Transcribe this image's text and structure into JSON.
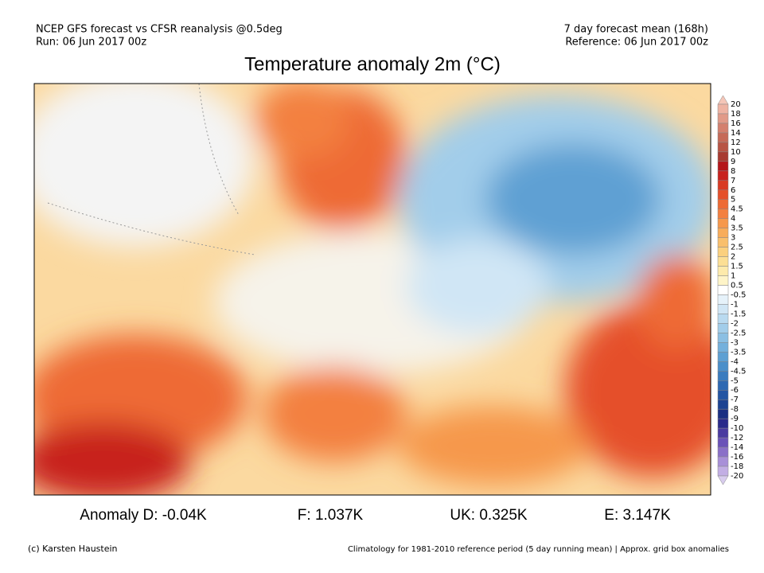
{
  "header": {
    "left_lines": [
      "NCEP GFS forecast vs CFSR reanalysis @0.5deg",
      "Run: 06 Jun 2017 00z"
    ],
    "right_lines": [
      "7 day forecast mean (168h)",
      "Reference: 06 Jun 2017 00z"
    ],
    "title": "Temperature anomaly 2m (°C)"
  },
  "colorbar": {
    "labels": [
      "20",
      "18",
      "16",
      "14",
      "12",
      "10",
      "9",
      "8",
      "7",
      "6",
      "5",
      "4.5",
      "4",
      "3.5",
      "3",
      "2.5",
      "2",
      "1.5",
      "1",
      "0.5",
      "-0.5",
      "-1",
      "-1.5",
      "-2",
      "-2.5",
      "-3",
      "-3.5",
      "-4",
      "-4.5",
      "-5",
      "-6",
      "-7",
      "-8",
      "-9",
      "-10",
      "-12",
      "-14",
      "-16",
      "-18",
      "-20"
    ],
    "colors": [
      "#f5c6b8",
      "#eeb3a3",
      "#e19a88",
      "#d4806e",
      "#c66a58",
      "#b85444",
      "#a83a30",
      "#b4161a",
      "#c8221e",
      "#d93a24",
      "#e5502a",
      "#ee6a34",
      "#f38040",
      "#f6984c",
      "#f8ac5a",
      "#f9bf6c",
      "#fbd07e",
      "#fcdf94",
      "#fdeaab",
      "#fef4c8",
      "#ffffff",
      "#e6f2fa",
      "#d0e6f5",
      "#b9daf0",
      "#a2cdea",
      "#8bbfe3",
      "#74b0dc",
      "#5ea0d3",
      "#4a8fca",
      "#3a7cbf",
      "#2d68b2",
      "#2355a3",
      "#1c4292",
      "#1a2f82",
      "#2a2a8a",
      "#4a3aa0",
      "#6a52b8",
      "#8a70c8",
      "#a890d8",
      "#c2aee4",
      "#d8ccee"
    ]
  },
  "stats": [
    "Anomaly D: -0.04K",
    "F: 1.037K",
    "UK: 0.325K",
    "E: 3.147K"
  ],
  "footer": {
    "left": "(c) Karsten Haustein",
    "right": "Climatology for 1981-2010 reference period (5 day running mean) | Approx. grid box anomalies"
  }
}
